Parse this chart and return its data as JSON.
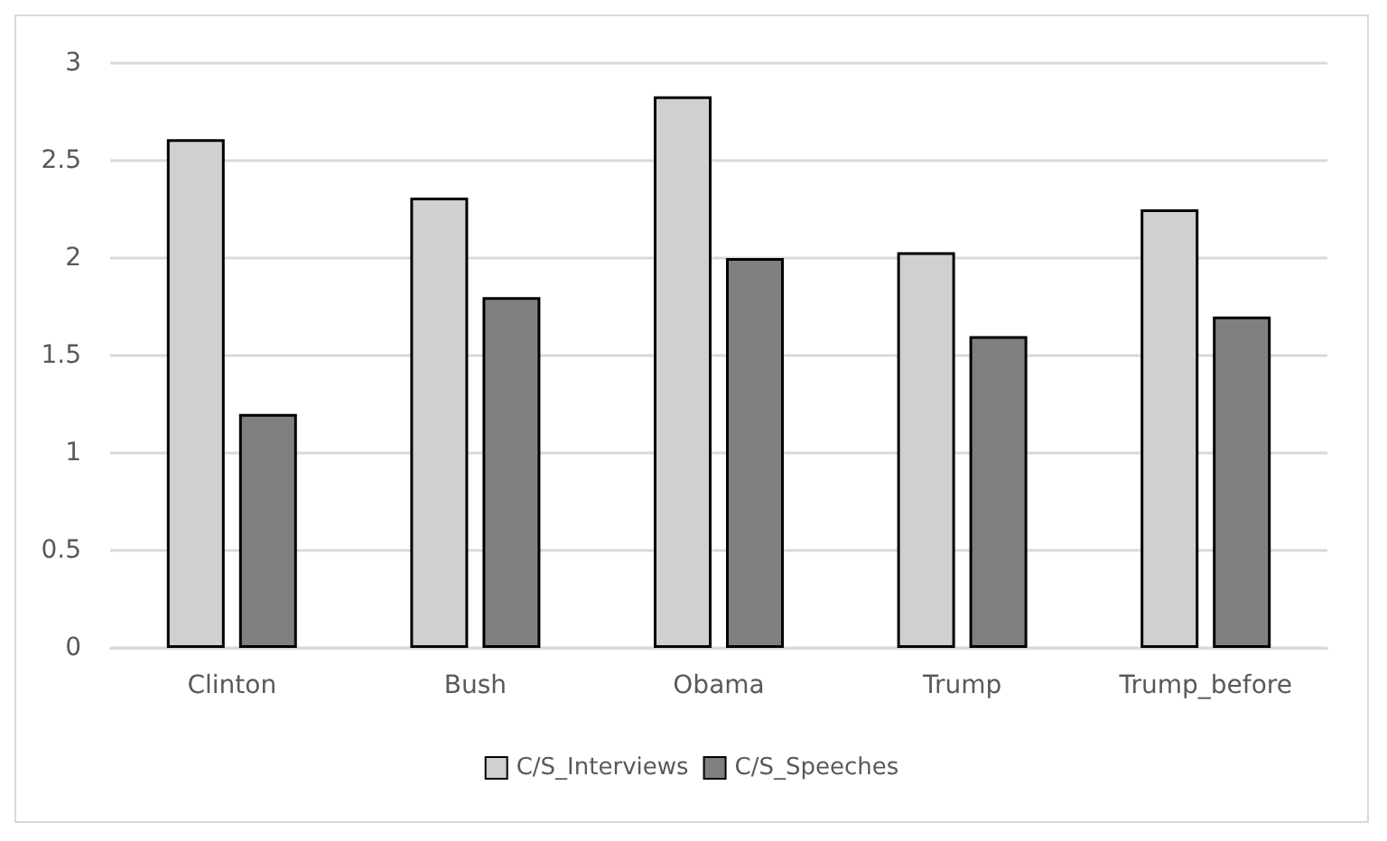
{
  "chart_data": {
    "type": "bar",
    "categories": [
      "Clinton",
      "Bush",
      "Obama",
      "Trump",
      "Trump_before"
    ],
    "series": [
      {
        "name": "C/S_Interviews",
        "color": "#d0d0d0",
        "values": [
          2.61,
          2.31,
          2.83,
          2.03,
          2.25
        ]
      },
      {
        "name": "C/S_Speeches",
        "color": "#808080",
        "values": [
          1.2,
          1.8,
          2.0,
          1.6,
          1.7
        ]
      }
    ],
    "ylim": [
      0,
      3
    ],
    "yticks": [
      0,
      0.5,
      1,
      1.5,
      2,
      2.5,
      3
    ],
    "grid": "y",
    "legend": "bottom"
  }
}
